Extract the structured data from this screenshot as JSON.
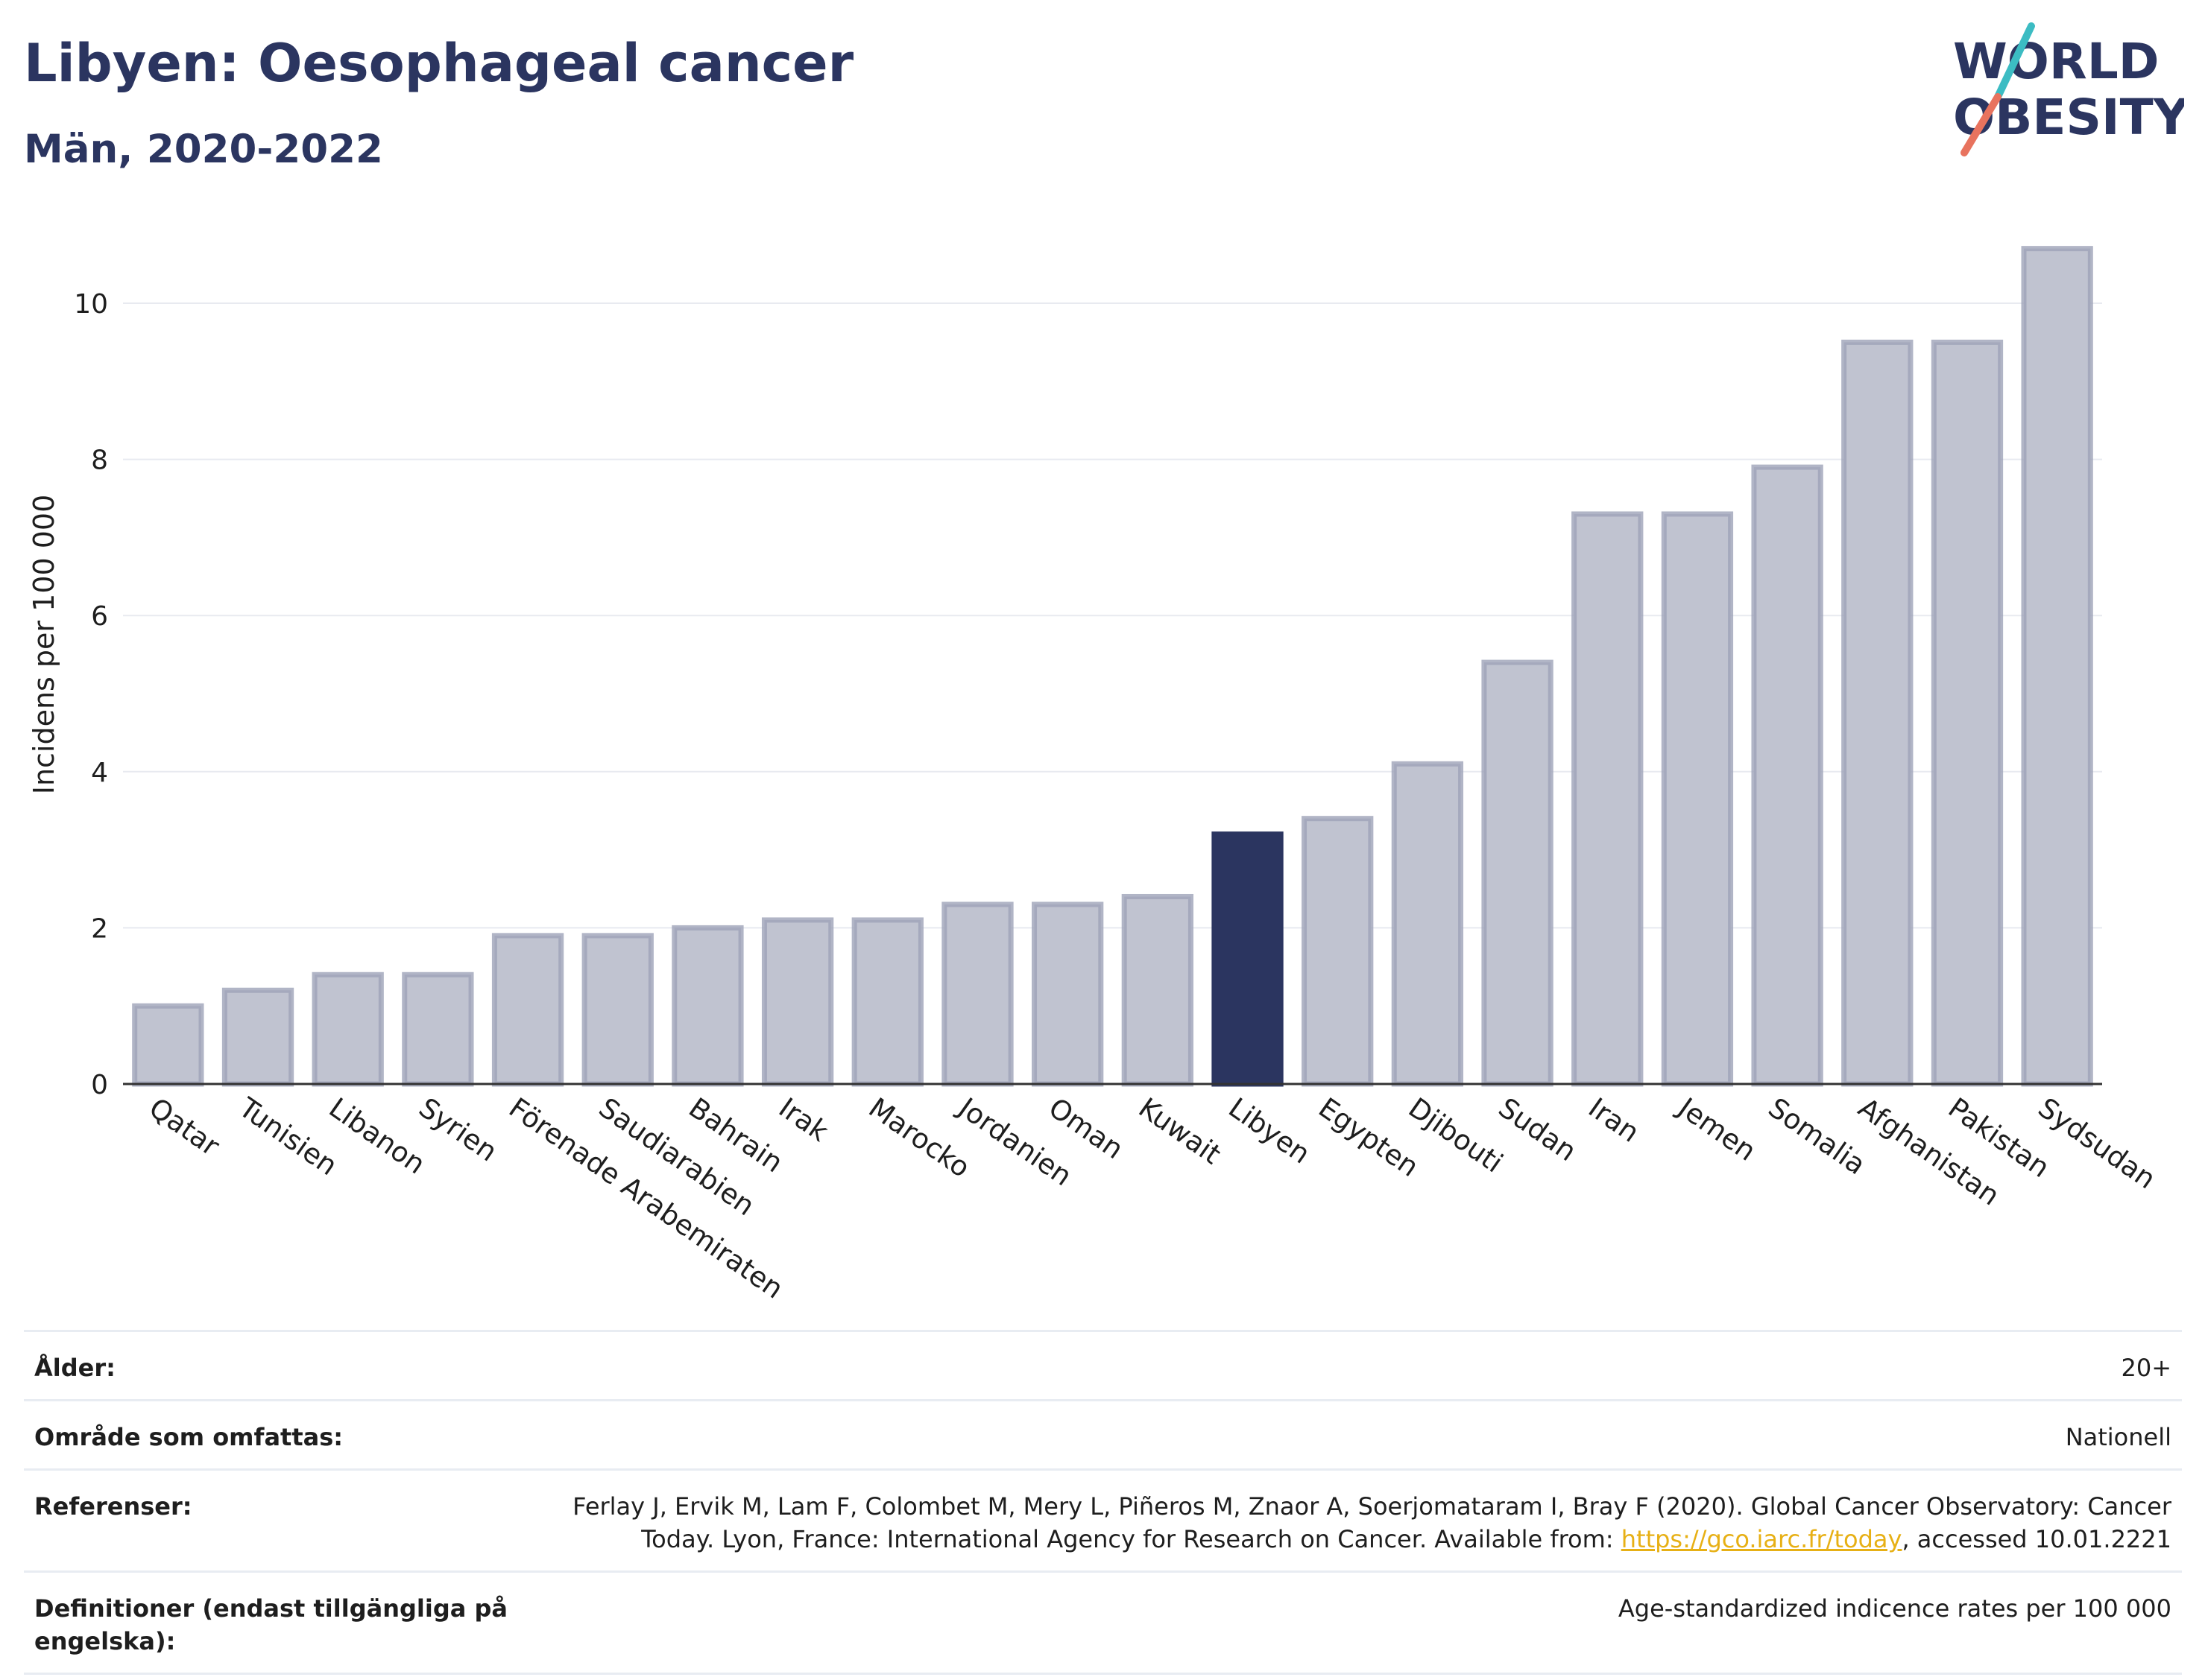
{
  "header": {
    "title": "Libyen: Oesophageal cancer",
    "subtitle": "Män, 2020-2022"
  },
  "logo": {
    "line1": "WORLD",
    "line2": "OBESITY"
  },
  "colors": {
    "highlight": "#2b3560",
    "bar": "#c0c3d0",
    "bar_border": "#9da2b8",
    "grid": "#e8eaf0",
    "axis": "#333333",
    "link": "#e7b015",
    "logo_teal": "#3cbcc3",
    "logo_coral": "#e8735e"
  },
  "chart_data": {
    "type": "bar",
    "ylabel": "Incidens per 100 000",
    "ylim": [
      0,
      11
    ],
    "yticks": [
      0,
      2,
      4,
      6,
      8,
      10
    ],
    "grid": true,
    "highlight": "Libyen",
    "categories": [
      "Qatar",
      "Tunisien",
      "Libanon",
      "Syrien",
      "Förenade Arabemiraten",
      "Saudiarabien",
      "Bahrain",
      "Irak",
      "Marocko",
      "Jordanien",
      "Oman",
      "Kuwait",
      "Libyen",
      "Egypten",
      "Djibouti",
      "Sudan",
      "Iran",
      "Jemen",
      "Somalia",
      "Afghanistan",
      "Pakistan",
      "Sydsudan"
    ],
    "values": [
      1.0,
      1.2,
      1.4,
      1.4,
      1.9,
      1.9,
      2.0,
      2.1,
      2.1,
      2.3,
      2.3,
      2.4,
      3.2,
      3.4,
      4.1,
      5.4,
      7.3,
      7.3,
      7.9,
      9.5,
      9.5,
      10.7
    ]
  },
  "meta": {
    "age_label": "Ålder:",
    "age_value": "20+",
    "area_label": "Område som omfattas:",
    "area_value": "Nationell",
    "ref_label": "Referenser:",
    "ref_text": "Ferlay J, Ervik M, Lam F, Colombet M, Mery L, Piñeros M, Znaor A, Soerjomataram I, Bray F (2020). Global Cancer Observatory: Cancer Today. Lyon, France: International Agency for Research on Cancer. Available from: ",
    "ref_link": "https://gco.iarc.fr/today",
    "ref_suffix": ", accessed 10.01.2221",
    "def_label": "Definitioner (endast tillgängliga på engelska):",
    "def_value": "Age-standardized indicence rates per 100 000"
  }
}
